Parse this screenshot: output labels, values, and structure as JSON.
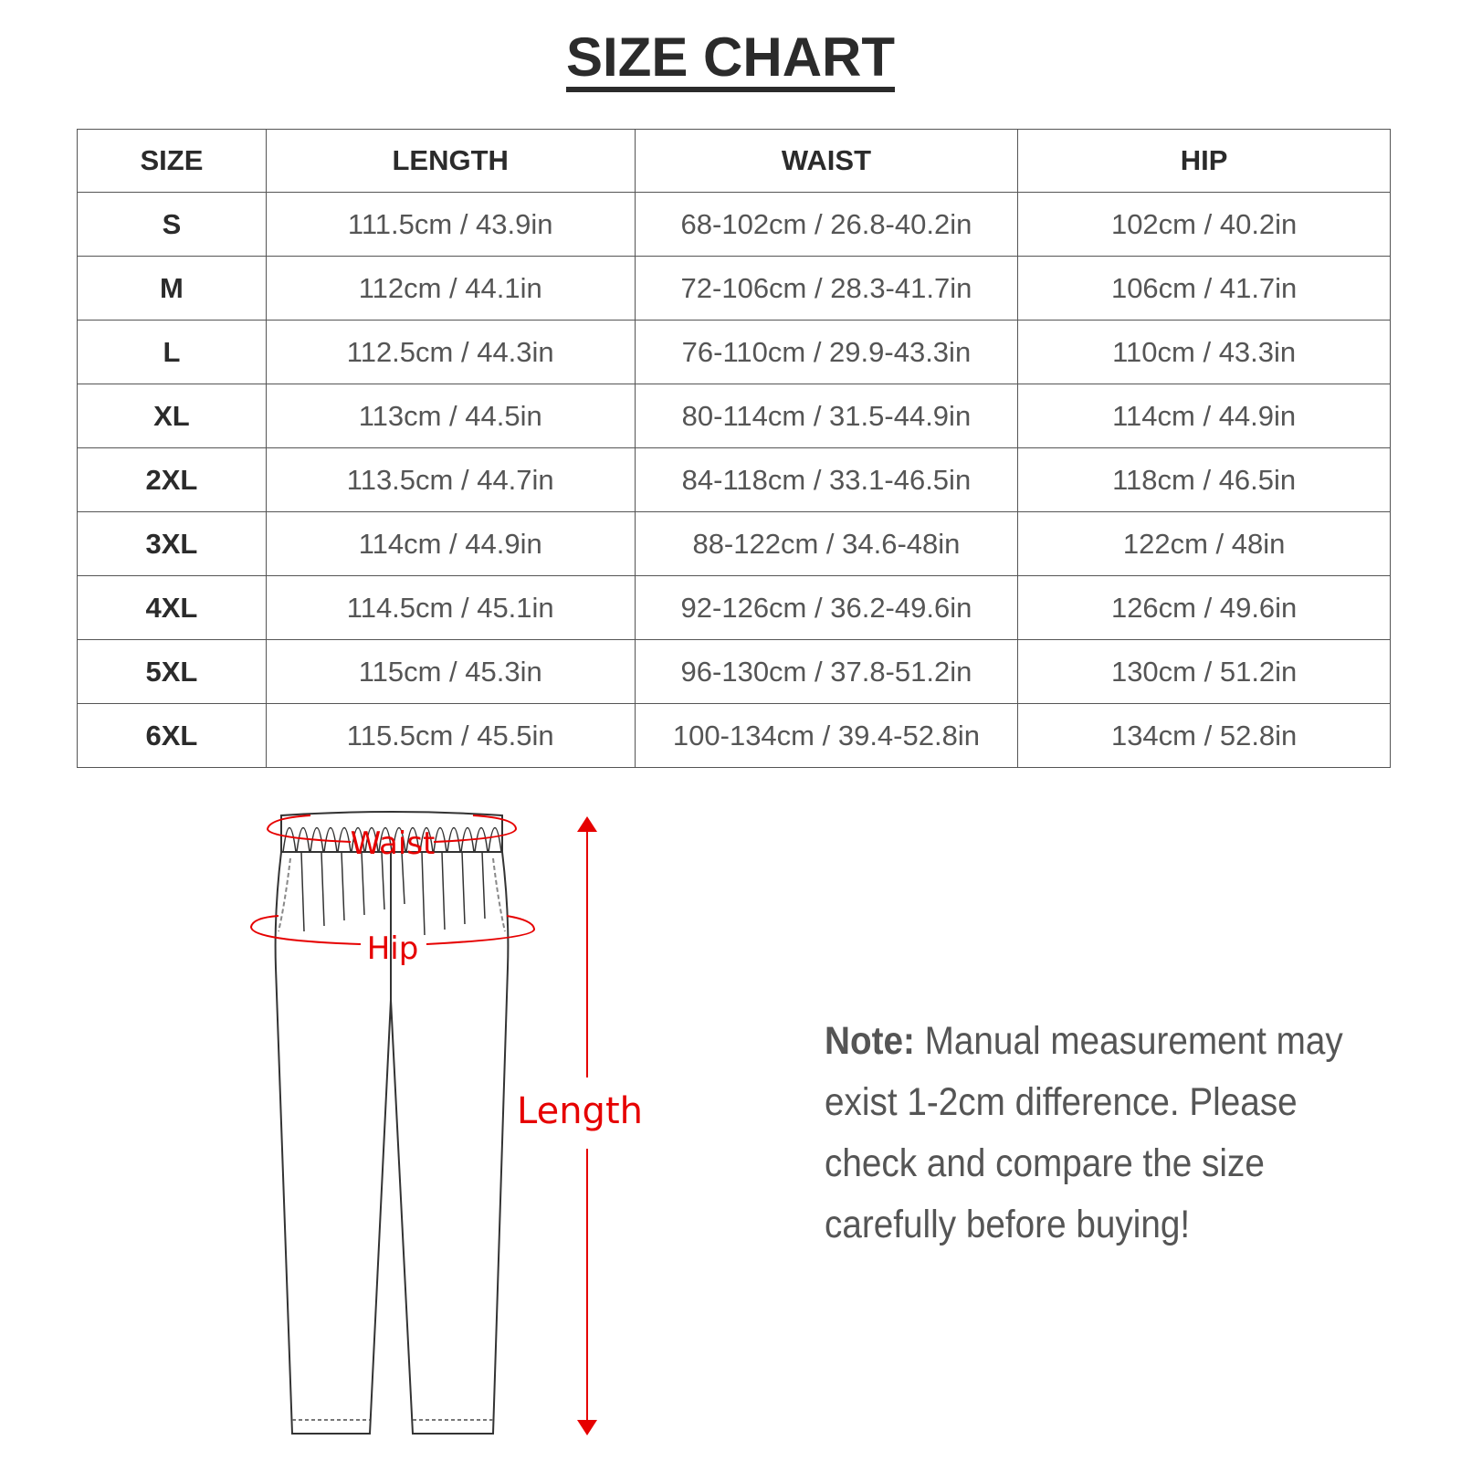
{
  "title": "SIZE CHART",
  "table": {
    "headers": [
      "SIZE",
      "LENGTH",
      "WAIST",
      "HIP"
    ],
    "rows": [
      [
        "S",
        "111.5cm / 43.9in",
        "68-102cm / 26.8-40.2in",
        "102cm / 40.2in"
      ],
      [
        "M",
        "112cm / 44.1in",
        "72-106cm / 28.3-41.7in",
        "106cm / 41.7in"
      ],
      [
        "L",
        "112.5cm / 44.3in",
        "76-110cm / 29.9-43.3in",
        "110cm / 43.3in"
      ],
      [
        "XL",
        "113cm / 44.5in",
        "80-114cm / 31.5-44.9in",
        "114cm / 44.9in"
      ],
      [
        "2XL",
        "113.5cm / 44.7in",
        "84-118cm / 33.1-46.5in",
        "118cm / 46.5in"
      ],
      [
        "3XL",
        "114cm / 44.9in",
        "88-122cm / 34.6-48in",
        "122cm / 48in"
      ],
      [
        "4XL",
        "114.5cm / 45.1in",
        "92-126cm / 36.2-49.6in",
        "126cm / 49.6in"
      ],
      [
        "5XL",
        "115cm / 45.3in",
        "96-130cm / 37.8-51.2in",
        "130cm / 51.2in"
      ],
      [
        "6XL",
        "115.5cm / 45.5in",
        "100-134cm / 39.4-52.8in",
        "134cm / 52.8in"
      ]
    ]
  },
  "diagram": {
    "waist_label": "Waist",
    "hip_label": "Hip",
    "length_label": "Length",
    "accent_color": "#e60000"
  },
  "note": {
    "label": "Note:",
    "text": " Manual measurement may exist 1-2cm difference. Please check and compare the size carefully before buying!"
  }
}
